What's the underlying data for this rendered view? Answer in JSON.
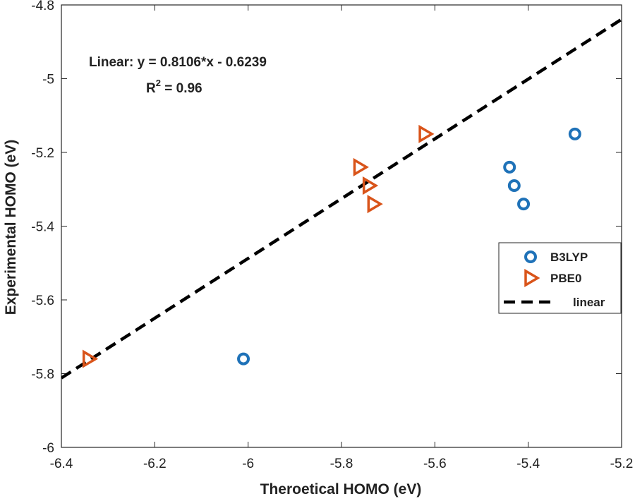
{
  "chart_data": {
    "type": "scatter",
    "title": "",
    "xlabel": "Theroetical HOMO (eV)",
    "ylabel": "Experimental HOMO (eV)",
    "xlim": [
      -6.4,
      -5.2
    ],
    "ylim": [
      -6.0,
      -4.8
    ],
    "xticks": [
      -6.4,
      -6.2,
      -6.0,
      -5.8,
      -5.6,
      -5.4,
      -5.2
    ],
    "xtick_labels": [
      "-6.4",
      "-6.2",
      "-6",
      "-5.8",
      "-5.6",
      "-5.4",
      "-5.2"
    ],
    "yticks": [
      -6.0,
      -5.8,
      -5.6,
      -5.4,
      -5.2,
      -5.0,
      -4.8
    ],
    "ytick_labels": [
      "-6",
      "-5.8",
      "-5.6",
      "-5.4",
      "-5.2",
      "-5",
      "-4.8"
    ],
    "grid": false,
    "legend_position": "right",
    "series": [
      {
        "name": "B3LYP",
        "marker": "circle",
        "color": "#1f72b8",
        "x": [
          -6.01,
          -5.44,
          -5.43,
          -5.41,
          -5.3
        ],
        "y": [
          -5.76,
          -5.24,
          -5.29,
          -5.34,
          -5.15
        ]
      },
      {
        "name": "PBE0",
        "marker": "triangle-right",
        "color": "#d9541a",
        "x": [
          -6.34,
          -5.76,
          -5.74,
          -5.73,
          -5.62
        ],
        "y": [
          -5.76,
          -5.24,
          -5.29,
          -5.34,
          -5.15
        ]
      },
      {
        "name": "linear",
        "marker": "dashed-line",
        "color": "#000000",
        "slope": 0.8106,
        "intercept": -0.6239
      }
    ],
    "annotations": {
      "equation": "Linear:  y = 0.8106*x - 0.6239",
      "r2_prefix": "R",
      "r2_sup": "2",
      "r2_value": " = 0.96"
    }
  }
}
